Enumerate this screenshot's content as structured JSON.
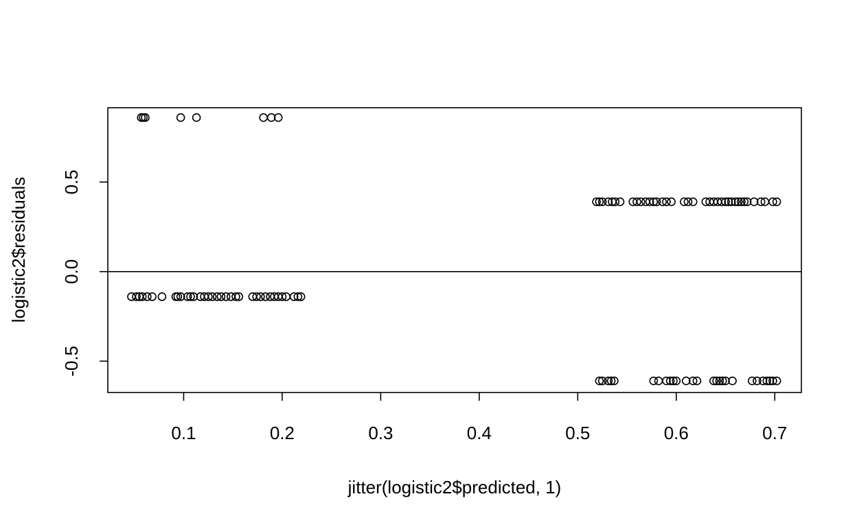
{
  "chart_data": {
    "type": "scatter",
    "title": "",
    "xlabel": "jitter(logistic2$predicted, 1)",
    "ylabel": "logistic2$residuals",
    "xlim": [
      0.023,
      0.727
    ],
    "ylim": [
      -0.675,
      0.915
    ],
    "x_ticks": [
      0.1,
      0.2,
      0.3,
      0.4,
      0.5,
      0.6,
      0.7
    ],
    "x_tick_labels": [
      "0.1",
      "0.2",
      "0.3",
      "0.4",
      "0.5",
      "0.6",
      "0.7"
    ],
    "y_ticks": [
      -0.5,
      0.0,
      0.5
    ],
    "y_tick_labels": [
      "-0.5",
      "0.0",
      "0.5"
    ],
    "grid": false,
    "legend": "none",
    "hline": 0,
    "point_color": "#000000",
    "series": [
      {
        "points": [
          [
            0.057,
            0.86
          ],
          [
            0.059,
            0.86
          ],
          [
            0.061,
            0.86
          ],
          [
            0.097,
            0.86
          ],
          [
            0.113,
            0.86
          ],
          [
            0.181,
            0.86
          ],
          [
            0.189,
            0.86
          ],
          [
            0.196,
            0.86
          ],
          [
            0.047,
            -0.14
          ],
          [
            0.052,
            -0.14
          ],
          [
            0.055,
            -0.14
          ],
          [
            0.058,
            -0.14
          ],
          [
            0.063,
            -0.14
          ],
          [
            0.068,
            -0.14
          ],
          [
            0.078,
            -0.14
          ],
          [
            0.092,
            -0.14
          ],
          [
            0.094,
            -0.14
          ],
          [
            0.097,
            -0.14
          ],
          [
            0.104,
            -0.14
          ],
          [
            0.107,
            -0.14
          ],
          [
            0.11,
            -0.14
          ],
          [
            0.117,
            -0.14
          ],
          [
            0.121,
            -0.14
          ],
          [
            0.125,
            -0.14
          ],
          [
            0.129,
            -0.14
          ],
          [
            0.134,
            -0.14
          ],
          [
            0.138,
            -0.14
          ],
          [
            0.143,
            -0.14
          ],
          [
            0.148,
            -0.14
          ],
          [
            0.153,
            -0.14
          ],
          [
            0.156,
            -0.14
          ],
          [
            0.17,
            -0.14
          ],
          [
            0.174,
            -0.14
          ],
          [
            0.178,
            -0.14
          ],
          [
            0.183,
            -0.14
          ],
          [
            0.188,
            -0.14
          ],
          [
            0.192,
            -0.14
          ],
          [
            0.196,
            -0.14
          ],
          [
            0.2,
            -0.14
          ],
          [
            0.204,
            -0.14
          ],
          [
            0.212,
            -0.14
          ],
          [
            0.216,
            -0.14
          ],
          [
            0.219,
            -0.14
          ],
          [
            0.519,
            0.39
          ],
          [
            0.522,
            0.39
          ],
          [
            0.525,
            0.39
          ],
          [
            0.531,
            0.39
          ],
          [
            0.535,
            0.39
          ],
          [
            0.538,
            0.39
          ],
          [
            0.543,
            0.39
          ],
          [
            0.556,
            0.39
          ],
          [
            0.56,
            0.39
          ],
          [
            0.564,
            0.39
          ],
          [
            0.569,
            0.39
          ],
          [
            0.573,
            0.39
          ],
          [
            0.577,
            0.39
          ],
          [
            0.58,
            0.39
          ],
          [
            0.586,
            0.39
          ],
          [
            0.59,
            0.39
          ],
          [
            0.595,
            0.39
          ],
          [
            0.608,
            0.39
          ],
          [
            0.612,
            0.39
          ],
          [
            0.617,
            0.39
          ],
          [
            0.63,
            0.39
          ],
          [
            0.634,
            0.39
          ],
          [
            0.638,
            0.39
          ],
          [
            0.642,
            0.39
          ],
          [
            0.646,
            0.39
          ],
          [
            0.65,
            0.39
          ],
          [
            0.653,
            0.39
          ],
          [
            0.656,
            0.39
          ],
          [
            0.66,
            0.39
          ],
          [
            0.663,
            0.39
          ],
          [
            0.666,
            0.39
          ],
          [
            0.669,
            0.39
          ],
          [
            0.672,
            0.39
          ],
          [
            0.679,
            0.39
          ],
          [
            0.686,
            0.39
          ],
          [
            0.69,
            0.39
          ],
          [
            0.698,
            0.39
          ],
          [
            0.702,
            0.39
          ],
          [
            0.522,
            -0.61
          ],
          [
            0.525,
            -0.61
          ],
          [
            0.531,
            -0.61
          ],
          [
            0.534,
            -0.61
          ],
          [
            0.537,
            -0.61
          ],
          [
            0.577,
            -0.61
          ],
          [
            0.582,
            -0.61
          ],
          [
            0.59,
            -0.61
          ],
          [
            0.594,
            -0.61
          ],
          [
            0.597,
            -0.61
          ],
          [
            0.6,
            -0.61
          ],
          [
            0.61,
            -0.61
          ],
          [
            0.617,
            -0.61
          ],
          [
            0.621,
            -0.61
          ],
          [
            0.638,
            -0.61
          ],
          [
            0.641,
            -0.61
          ],
          [
            0.644,
            -0.61
          ],
          [
            0.647,
            -0.61
          ],
          [
            0.65,
            -0.61
          ],
          [
            0.657,
            -0.61
          ],
          [
            0.677,
            -0.61
          ],
          [
            0.682,
            -0.61
          ],
          [
            0.688,
            -0.61
          ],
          [
            0.692,
            -0.61
          ],
          [
            0.695,
            -0.61
          ],
          [
            0.698,
            -0.61
          ],
          [
            0.702,
            -0.61
          ]
        ]
      }
    ]
  }
}
